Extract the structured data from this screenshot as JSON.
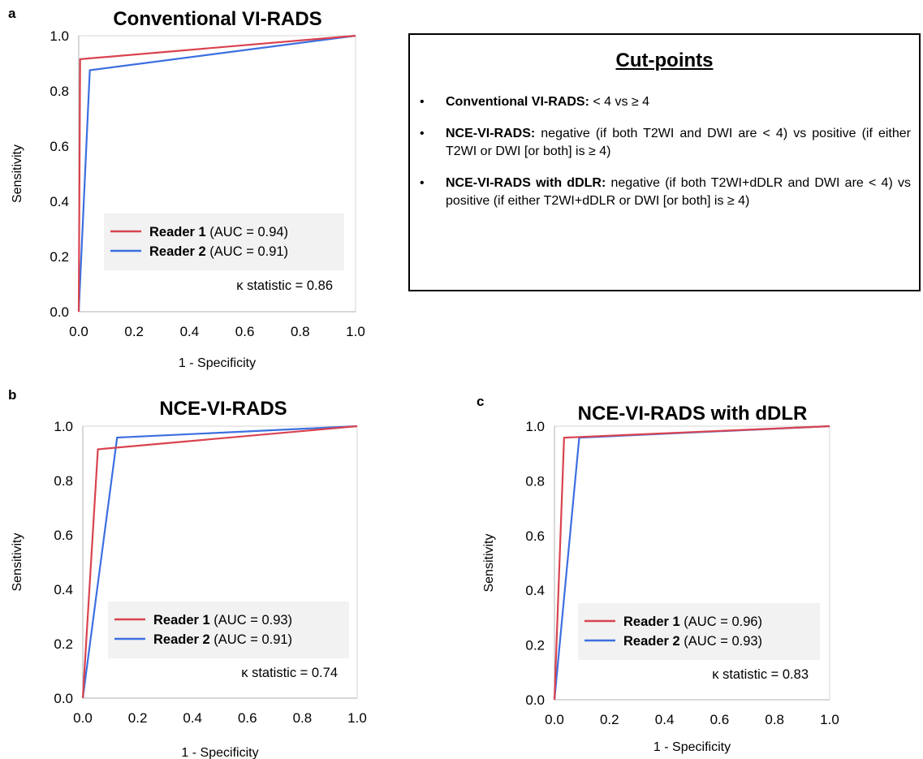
{
  "chart_data": [
    {
      "type": "line",
      "panel_letter": "a",
      "title": "Conventional VI-RADS",
      "xlabel": "1 - Specificity",
      "ylabel": "Sensitivity",
      "xlim": [
        0,
        1
      ],
      "ylim": [
        0,
        1
      ],
      "xticks": [
        "0.0",
        "0.2",
        "0.4",
        "0.6",
        "0.8",
        "1.0"
      ],
      "yticks": [
        "0.0",
        "0.2",
        "0.4",
        "0.6",
        "0.8",
        "1.0"
      ],
      "legend_position": "bottom-right",
      "series": [
        {
          "name": "Reader 1",
          "auc_text": "(AUC  = 0.94)",
          "color": "#d9434f",
          "x": [
            0.0,
            0.005,
            1.0
          ],
          "y": [
            0.0,
            0.915,
            1.0
          ]
        },
        {
          "name": "Reader 2",
          "auc_text": "(AUC  = 0.91)",
          "color": "#3c6fe0",
          "x": [
            0.0,
            0.04,
            1.0
          ],
          "y": [
            0.0,
            0.875,
            1.0
          ]
        }
      ],
      "annotation": "κ statistic = 0.86"
    },
    {
      "type": "line",
      "panel_letter": "b",
      "title": "NCE-VI-RADS",
      "xlabel": "1 - Specificity",
      "ylabel": "Sensitivity",
      "xlim": [
        0,
        1
      ],
      "ylim": [
        0,
        1
      ],
      "xticks": [
        "0.0",
        "0.2",
        "0.4",
        "0.6",
        "0.8",
        "1.0"
      ],
      "yticks": [
        "0.0",
        "0.2",
        "0.4",
        "0.6",
        "0.8",
        "1.0"
      ],
      "legend_position": "bottom-right",
      "series": [
        {
          "name": "Reader 1",
          "auc_text": "(AUC  = 0.93)",
          "color": "#d9434f",
          "x": [
            0.0,
            0.055,
            1.0
          ],
          "y": [
            0.0,
            0.915,
            1.0
          ]
        },
        {
          "name": "Reader 2",
          "auc_text": "(AUC  = 0.91)",
          "color": "#3c6fe0",
          "x": [
            0.0,
            0.125,
            1.0
          ],
          "y": [
            0.0,
            0.958,
            1.0
          ]
        }
      ],
      "annotation": "κ statistic = 0.74"
    },
    {
      "type": "line",
      "panel_letter": "c",
      "title": "NCE-VI-RADS with dDLR",
      "xlabel": "1 - Specificity",
      "ylabel": "Sensitivity",
      "xlim": [
        0,
        1
      ],
      "ylim": [
        0,
        1
      ],
      "xticks": [
        "0.0",
        "0.2",
        "0.4",
        "0.6",
        "0.8",
        "1.0"
      ],
      "yticks": [
        "0.0",
        "0.2",
        "0.4",
        "0.6",
        "0.8",
        "1.0"
      ],
      "legend_position": "bottom-right",
      "series": [
        {
          "name": "Reader 1",
          "auc_text": "(AUC  = 0.96)",
          "color": "#d9434f",
          "x": [
            0.0,
            0.035,
            1.0
          ],
          "y": [
            0.0,
            0.958,
            1.0
          ]
        },
        {
          "name": "Reader 2",
          "auc_text": "(AUC  = 0.93)",
          "color": "#3c6fe0",
          "x": [
            0.0,
            0.09,
            1.0
          ],
          "y": [
            0.0,
            0.958,
            1.0
          ]
        }
      ],
      "annotation": "κ statistic = 0.83"
    }
  ],
  "cutpoints": {
    "title": "Cut-points",
    "bullet": "•",
    "items": [
      {
        "bold": "Conventional VI-RADS:",
        "text": " < 4 vs ≥ 4"
      },
      {
        "bold": "NCE-VI-RADS:",
        "text": " negative (if both T2WI and DWI are < 4) vs positive (if either T2WI or DWI [or both]  is ≥ 4)"
      },
      {
        "bold": "NCE-VI-RADS with dDLR:",
        "text": " negative (if both T2WI+dDLR and DWI are < 4) vs positive (if either T2WI+dDLR or DWI [or both]  is ≥ 4)"
      }
    ]
  }
}
